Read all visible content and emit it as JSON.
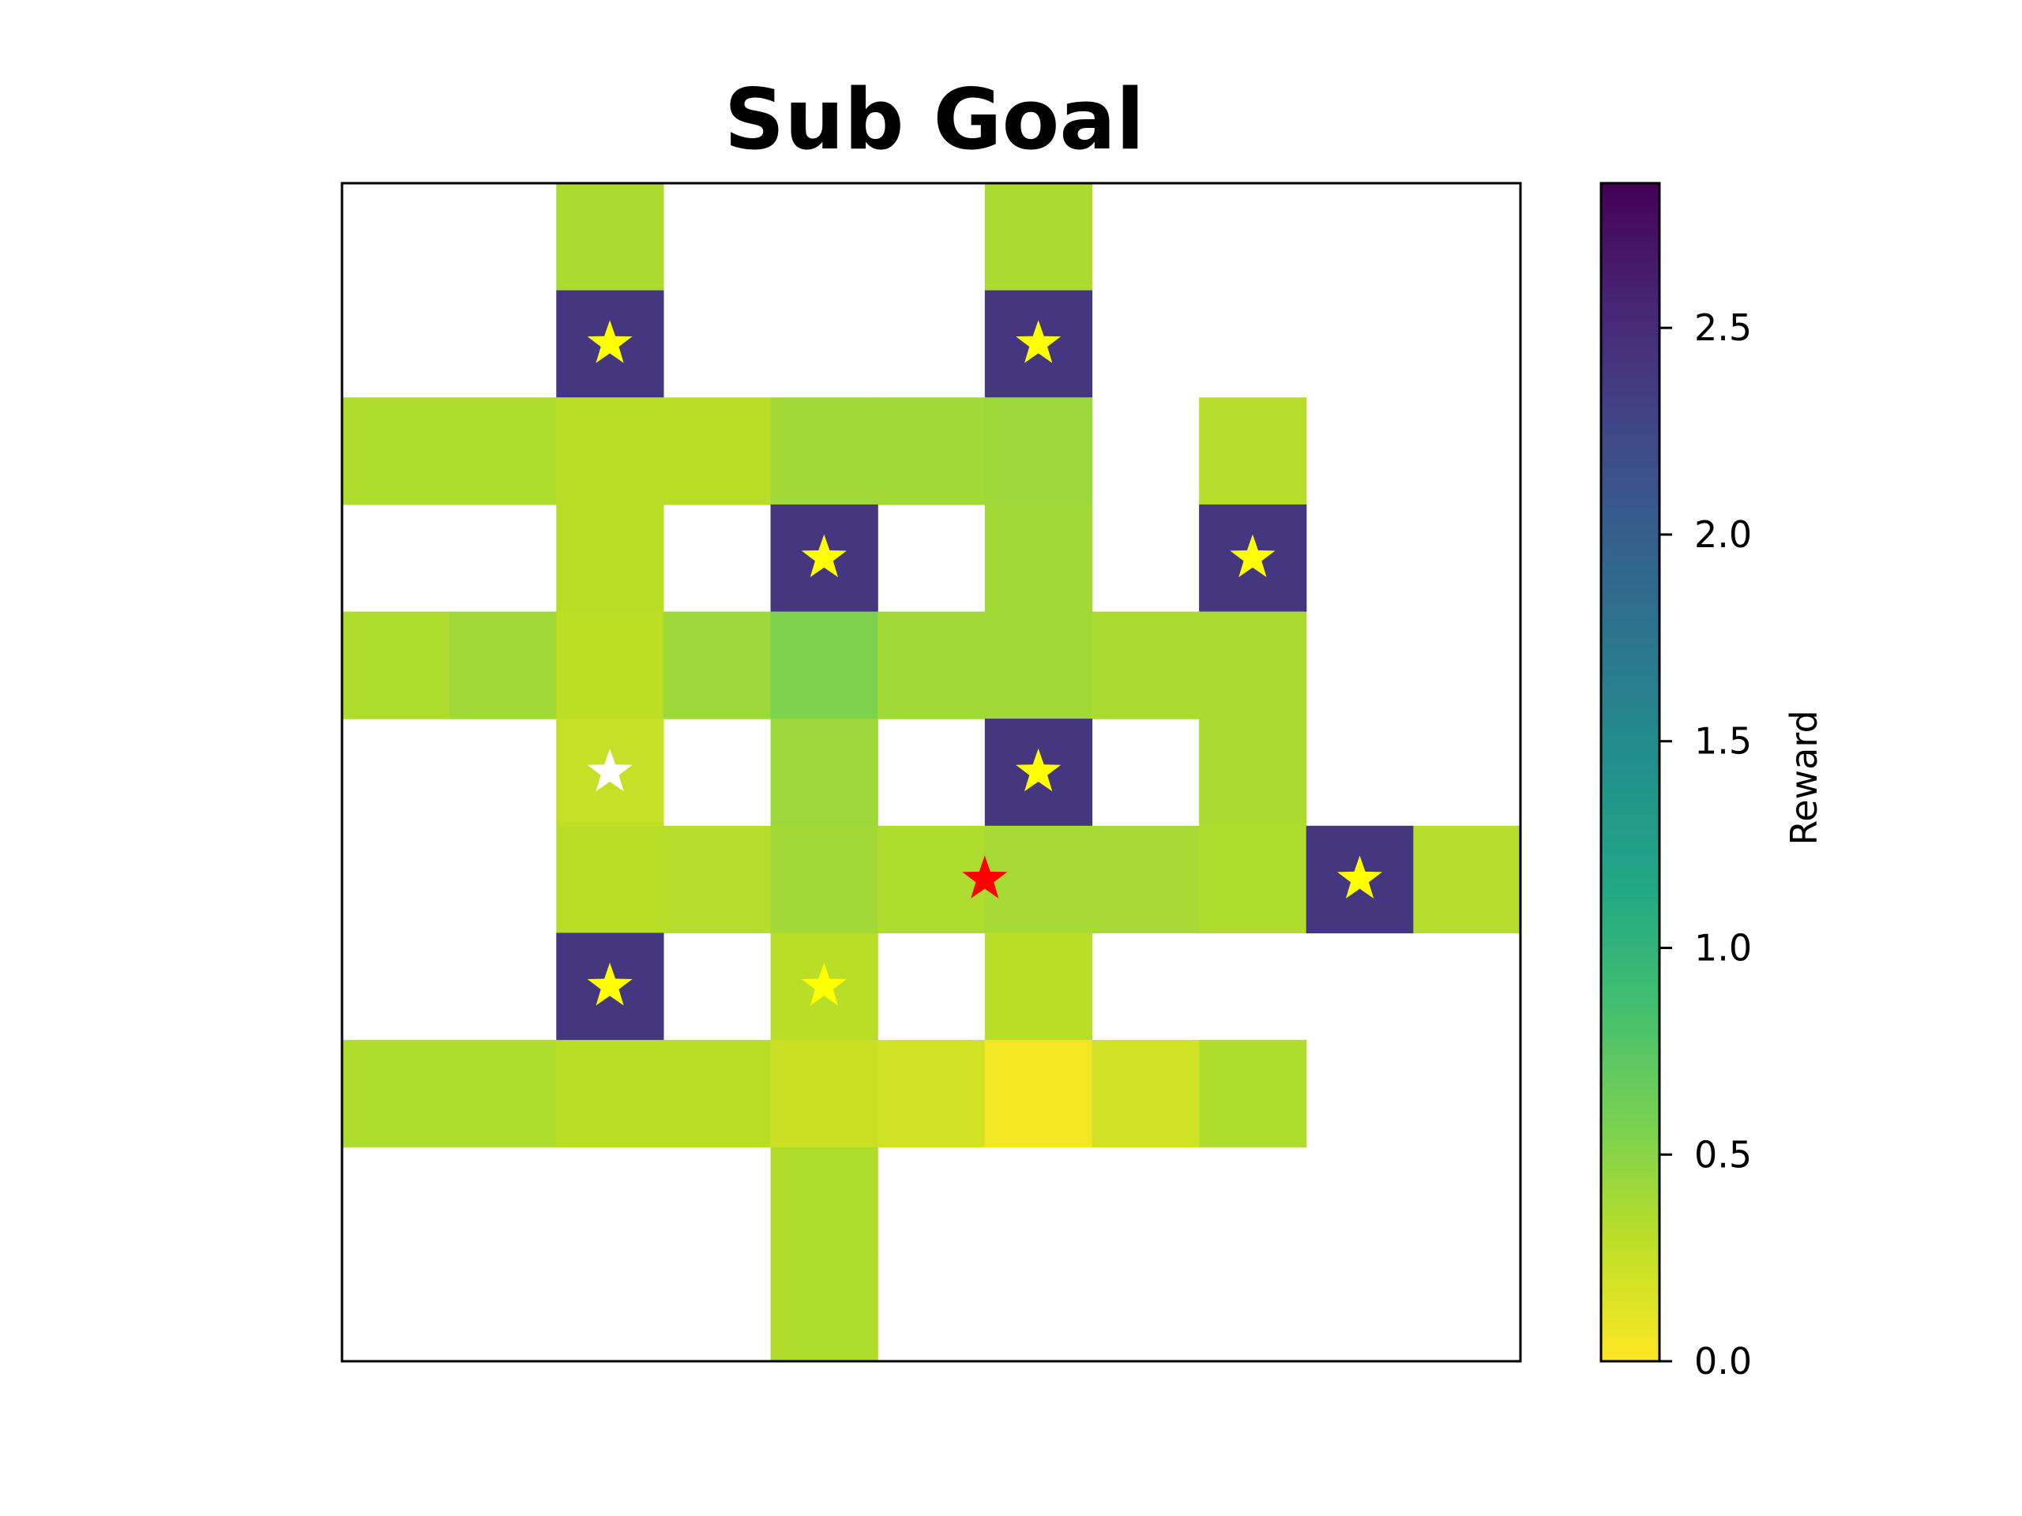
{
  "chart_data": {
    "type": "heatmap",
    "title": "Sub Goal",
    "grid_size": 11,
    "vmin": 0.0,
    "vmax": 2.85,
    "colormap": "viridis_r",
    "axes_ticks_visible": false,
    "colorbar": {
      "label": "Reward",
      "ticks": [
        0.0,
        0.5,
        1.0,
        1.5,
        2.0,
        2.5
      ],
      "tick_labels": [
        "0.0",
        "0.5",
        "1.0",
        "1.5",
        "2.0",
        "2.5"
      ]
    },
    "values": [
      [
        null,
        null,
        0.36,
        null,
        null,
        null,
        0.36,
        null,
        null,
        null,
        null
      ],
      [
        null,
        null,
        2.4,
        null,
        null,
        null,
        2.4,
        null,
        null,
        null,
        null
      ],
      [
        0.34,
        0.34,
        0.3,
        0.3,
        0.4,
        0.4,
        0.42,
        null,
        0.32,
        null,
        null
      ],
      [
        null,
        null,
        0.3,
        null,
        2.4,
        null,
        0.4,
        null,
        2.4,
        null,
        null
      ],
      [
        0.34,
        0.4,
        0.28,
        0.42,
        0.55,
        0.4,
        0.4,
        0.36,
        0.36,
        null,
        null
      ],
      [
        null,
        null,
        0.25,
        null,
        0.42,
        null,
        2.4,
        null,
        0.36,
        null,
        null
      ],
      [
        null,
        null,
        0.3,
        0.32,
        0.4,
        0.35,
        0.38,
        0.38,
        0.34,
        2.4,
        0.32
      ],
      [
        null,
        null,
        2.4,
        null,
        0.3,
        null,
        0.3,
        null,
        null,
        null,
        null
      ],
      [
        0.34,
        0.34,
        0.3,
        0.3,
        0.22,
        0.2,
        0.05,
        0.2,
        0.34,
        null,
        null
      ],
      [
        null,
        null,
        null,
        null,
        0.34,
        null,
        null,
        null,
        null,
        null,
        null
      ],
      [
        null,
        null,
        null,
        null,
        0.34,
        null,
        null,
        null,
        null,
        null,
        null
      ]
    ],
    "stars": [
      {
        "row": 1,
        "col": 2,
        "color": "#ffff00"
      },
      {
        "row": 1,
        "col": 6,
        "color": "#ffff00"
      },
      {
        "row": 3,
        "col": 4,
        "color": "#ffff00"
      },
      {
        "row": 3,
        "col": 8,
        "color": "#ffff00"
      },
      {
        "row": 5,
        "col": 2,
        "color": "#ffffff"
      },
      {
        "row": 5,
        "col": 6,
        "color": "#ffff00"
      },
      {
        "row": 6,
        "col": 5.5,
        "color": "#ff0000"
      },
      {
        "row": 6,
        "col": 9,
        "color": "#ffff00"
      },
      {
        "row": 7,
        "col": 2,
        "color": "#ffff00"
      },
      {
        "row": 7,
        "col": 4,
        "color": "#ffff00"
      }
    ]
  }
}
